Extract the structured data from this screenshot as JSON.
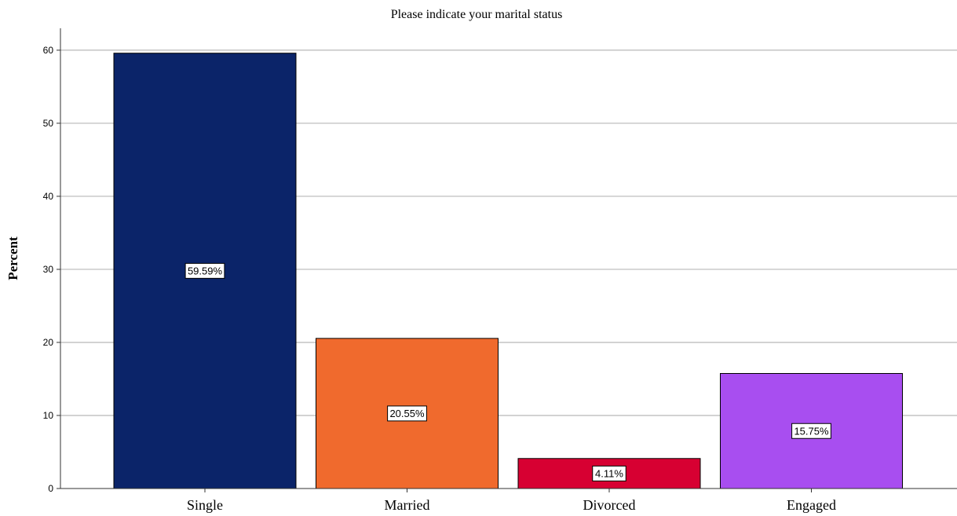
{
  "chart_data": {
    "type": "bar",
    "title": "Please indicate your marital status",
    "xlabel": "",
    "ylabel": "Percent",
    "ylim": [
      0,
      63
    ],
    "yticks": [
      0,
      10,
      20,
      30,
      40,
      50,
      60
    ],
    "grid": true,
    "categories": [
      "Single",
      "Married",
      "Divorced",
      "Engaged"
    ],
    "values": [
      59.59,
      20.55,
      4.11,
      15.75
    ],
    "data_labels": [
      "59.59%",
      "20.55%",
      "4.11%",
      "15.75%"
    ],
    "colors": [
      "#0b2469",
      "#f06a2d",
      "#d70032",
      "#a84ef0"
    ]
  }
}
